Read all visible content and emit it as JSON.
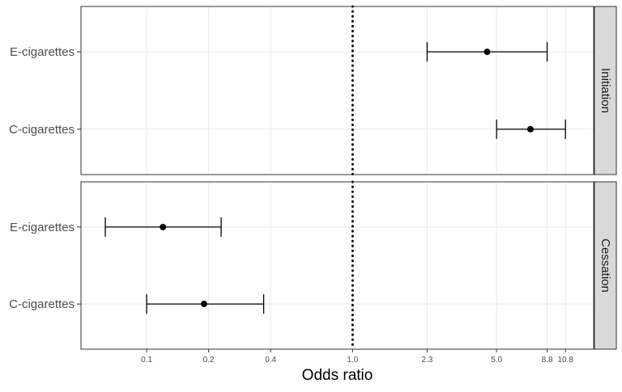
{
  "chart_data": {
    "type": "forest",
    "xlabel": "Odds ratio",
    "x_scale": "log",
    "xlim": [
      0.048,
      14.8
    ],
    "x_ticks": [
      0.1,
      0.2,
      0.4,
      1.0,
      2.3,
      5.0,
      8.8,
      10.8
    ],
    "x_tick_labels": [
      "0.1",
      "0.2",
      "0.4",
      "1.0",
      "2.3",
      "5.0",
      "8.8",
      "10.8"
    ],
    "reference_line": 1.0,
    "grid": true,
    "panels": [
      {
        "strip_label": "Initiation",
        "rows": [
          {
            "label": "E-cigarettes",
            "estimate": 4.5,
            "lower": 2.3,
            "upper": 8.8
          },
          {
            "label": "C-cigarettes",
            "estimate": 7.3,
            "lower": 5.0,
            "upper": 10.8
          }
        ]
      },
      {
        "strip_label": "Cessation",
        "rows": [
          {
            "label": "E-cigarettes",
            "estimate": 0.12,
            "lower": 0.063,
            "upper": 0.23
          },
          {
            "label": "C-cigarettes",
            "estimate": 0.19,
            "lower": 0.1,
            "upper": 0.37
          }
        ]
      }
    ]
  }
}
